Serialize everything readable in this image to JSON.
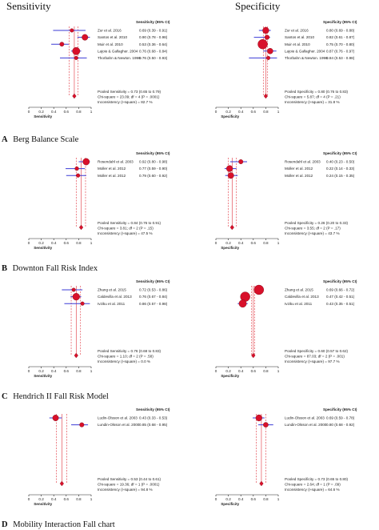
{
  "headers": {
    "left": "Sensitivity",
    "right": "Specificity"
  },
  "sections": [
    {
      "letter": "A",
      "title": "Berg Balance Scale"
    },
    {
      "letter": "B",
      "title": "Downton Fall Risk Index"
    },
    {
      "letter": "C",
      "title": "Hendrich II Fall Risk Model"
    },
    {
      "letter": "D",
      "title": "Mobility Interaction Fall chart"
    }
  ],
  "chart_data": [
    {
      "type": "forest",
      "panel": "A",
      "measure": "sensitivity",
      "col_header": "Sensitivity (95% CI)",
      "xlabel": "Sensitivity",
      "xlim": [
        0,
        1
      ],
      "ticks": [
        "0",
        "0.2",
        "0.4",
        "0.6",
        "0.8",
        "1"
      ],
      "studies": [
        {
          "name": "Zur et al. 2016",
          "value": 0.69,
          "lo": 0.39,
          "hi": 0.91,
          "ci_text": "0.69 (0.39 - 0.91)"
        },
        {
          "name": "Santos et al. 2010",
          "value": 0.9,
          "lo": 0.78,
          "hi": 0.98,
          "ci_text": "0.90 (0.78 - 0.98)"
        },
        {
          "name": "Muir et al. 2010",
          "value": 0.53,
          "lo": 0.36,
          "hi": 0.64,
          "ci_text": "0.53 (0.36 - 0.64)"
        },
        {
          "name": "Lajoie & Gallagher. 2004",
          "value": 0.76,
          "lo": 0.68,
          "hi": 0.84,
          "ci_text": "0.76 (0.68 - 0.84)"
        },
        {
          "name": "Thorbahn & Newton. 1996",
          "value": 0.76,
          "lo": 0.5,
          "hi": 0.93,
          "ci_text": "0.76 (0.50 - 0.93)"
        }
      ],
      "pooled": {
        "value": 0.73,
        "lo": 0.65,
        "hi": 0.79
      },
      "summary": [
        "Pooled Sensitivity = 0.73 (0.65 to 0.79)",
        "Chi-square = 23.09; df = 4 (P = .0001)",
        "Inconsistency (I-square) = 82.7 %"
      ]
    },
    {
      "type": "forest",
      "panel": "A",
      "measure": "specificity",
      "col_header": "Specificity (95% CI)",
      "xlabel": "Specificity",
      "xlim": [
        0,
        1
      ],
      "ticks": [
        "0",
        "0.2",
        "0.4",
        "0.6",
        "0.8",
        "1"
      ],
      "studies": [
        {
          "name": "Zur et al. 2016",
          "value": 0.8,
          "lo": 0.69,
          "hi": 0.88,
          "ci_text": "0.80 (0.69 - 0.88)"
        },
        {
          "name": "Santos et al. 2010",
          "value": 0.82,
          "lo": 0.61,
          "hi": 0.87,
          "ci_text": "0.82 (0.61 - 0.87)"
        },
        {
          "name": "Muir et al. 2010",
          "value": 0.75,
          "lo": 0.7,
          "hi": 0.8,
          "ci_text": "0.75 (0.70 - 0.80)"
        },
        {
          "name": "Lajoie & Gallagher. 2004",
          "value": 0.87,
          "lo": 0.76,
          "hi": 0.97,
          "ci_text": "0.87 (0.76 - 0.97)"
        },
        {
          "name": "Thorbahn & Newton. 1996",
          "value": 0.84,
          "lo": 0.53,
          "hi": 0.98,
          "ci_text": "0.84 (0.53 - 0.98)"
        }
      ],
      "pooled": {
        "value": 0.8,
        "lo": 0.76,
        "hi": 0.83
      },
      "summary": [
        "Pooled Specificity = 0.80 (0.76 to 0.83)",
        "Chi-square = 5.87; df = 4 (P = .21)",
        "Inconsistency (I-square) = 31.8 %"
      ]
    },
    {
      "type": "forest",
      "panel": "B",
      "measure": "sensitivity",
      "col_header": "Sensitivity (95% CI)",
      "xlabel": "Sensitivity",
      "xlim": [
        0,
        1
      ],
      "ticks": [
        "0",
        "0.2",
        "0.4",
        "0.6",
        "0.8",
        "1"
      ],
      "studies": [
        {
          "name": "Rosendahl et al. 2003",
          "value": 0.92,
          "lo": 0.8,
          "hi": 0.98,
          "ci_text": "0.92 (0.80 - 0.98)"
        },
        {
          "name": "Moller et al. 2012",
          "value": 0.77,
          "lo": 0.59,
          "hi": 0.9,
          "ci_text": "0.77 (0.59 - 0.90)"
        },
        {
          "name": "Moller et al. 2012",
          "value": 0.79,
          "lo": 0.6,
          "hi": 0.92,
          "ci_text": "0.79 (0.60 - 0.92)"
        }
      ],
      "pooled": {
        "value": 0.84,
        "lo": 0.76,
        "hi": 0.91
      },
      "summary": [
        "Pooled Sensitivity = 0.84 (0.76 to 0.91)",
        "Chi-square = 3.81; df = 2 (P = .15)",
        "Inconsistency (I-square) = 47.5 %"
      ]
    },
    {
      "type": "forest",
      "panel": "B",
      "measure": "specificity",
      "col_header": "Specificity (95% CI)",
      "xlabel": "Specificity",
      "xlim": [
        0,
        1
      ],
      "ticks": [
        "0",
        "0.2",
        "0.4",
        "0.6",
        "0.8",
        "1"
      ],
      "studies": [
        {
          "name": "Rosendahl et al. 2003",
          "value": 0.4,
          "lo": 0.23,
          "hi": 0.5,
          "ci_text": "0.40 (0.23 - 0.50)"
        },
        {
          "name": "Moller et al. 2012",
          "value": 0.22,
          "lo": 0.14,
          "hi": 0.33,
          "ci_text": "0.22 (0.14 - 0.33)"
        },
        {
          "name": "Moller et al. 2012",
          "value": 0.24,
          "lo": 0.15,
          "hi": 0.35,
          "ci_text": "0.24 (0.15 - 0.35)"
        }
      ],
      "pooled": {
        "value": 0.26,
        "lo": 0.2,
        "hi": 0.33
      },
      "summary": [
        "Pooled Specificity = 0.26 (0.20 to 0.33)",
        "Chi-square = 3.55; df = 2 (P = .17)",
        "Inconsistency (I-square) = 43.7 %"
      ]
    },
    {
      "type": "forest",
      "panel": "C",
      "measure": "sensitivity",
      "col_header": "Sensitivity (95% CI)",
      "xlabel": "Sensitivity",
      "xlim": [
        0,
        1
      ],
      "ticks": [
        "0",
        "0.2",
        "0.4",
        "0.6",
        "0.8",
        "1"
      ],
      "studies": [
        {
          "name": "Zhang et al. 2015",
          "value": 0.72,
          "lo": 0.53,
          "hi": 0.86,
          "ci_text": "0.72 (0.53 - 0.86)"
        },
        {
          "name": "Caldevilla et al. 2013",
          "value": 0.76,
          "lo": 0.67,
          "hi": 0.84,
          "ci_text": "0.76 (0.67 - 0.84)"
        },
        {
          "name": "Ivziku et al. 2011",
          "value": 0.86,
          "lo": 0.57,
          "hi": 0.98,
          "ci_text": "0.86 (0.57 - 0.98)"
        }
      ],
      "pooled": {
        "value": 0.76,
        "lo": 0.68,
        "hi": 0.83
      },
      "summary": [
        "Pooled Sensitivity = 0.76 (0.68 to 0.83)",
        "Chi-square = 1.10; df = 2 (P = .58)",
        "Inconsistency (I-square) = 0.0 %"
      ]
    },
    {
      "type": "forest",
      "panel": "C",
      "measure": "specificity",
      "col_header": "Specificity (95% CI)",
      "xlabel": "Specificity",
      "xlim": [
        0,
        1
      ],
      "ticks": [
        "0",
        "0.2",
        "0.4",
        "0.6",
        "0.8",
        "1"
      ],
      "studies": [
        {
          "name": "Zhang et al. 2015",
          "value": 0.69,
          "lo": 0.66,
          "hi": 0.72,
          "ci_text": "0.69 (0.66 - 0.72)"
        },
        {
          "name": "Caldevilla et al. 2013",
          "value": 0.47,
          "lo": 0.42,
          "hi": 0.51,
          "ci_text": "0.47 (0.42 - 0.51)"
        },
        {
          "name": "Ivziku et al. 2011",
          "value": 0.43,
          "lo": 0.35,
          "hi": 0.51,
          "ci_text": "0.43 (0.35 - 0.51)"
        }
      ],
      "pooled": {
        "value": 0.6,
        "lo": 0.57,
        "hi": 0.62
      },
      "summary": [
        "Pooled Specificity = 0.60 (0.57 to 0.62)",
        "Chi-square = 87.03; df = 2 (P = .001)",
        "Inconsistency (I-square) = 97.7 %"
      ]
    },
    {
      "type": "forest",
      "panel": "D",
      "measure": "sensitivity",
      "col_header": "Sensitivity (95% CI)",
      "xlabel": "Sensitivity",
      "xlim": [
        0,
        1
      ],
      "ticks": [
        "0",
        "0.2",
        "0.4",
        "0.6",
        "0.8",
        "1"
      ],
      "studies": [
        {
          "name": "Ludin-Olsson et al. 2003",
          "value": 0.43,
          "lo": 0.33,
          "hi": 0.53,
          "ci_text": "0.43 (0.33 - 0.53)"
        },
        {
          "name": "Lundin-Olsson et al. 2000",
          "value": 0.85,
          "lo": 0.68,
          "hi": 0.95,
          "ci_text": "0.85 (0.68 - 0.95)"
        }
      ],
      "pooled": {
        "value": 0.53,
        "lo": 0.44,
        "hi": 0.61
      },
      "summary": [
        "Pooled Sensitivity = 0.53 (0.44 to 0.61)",
        "Chi-square = 19.36; df = 1 (P = .0001)",
        "Inconsistency (I-square) = 94.8 %"
      ]
    },
    {
      "type": "forest",
      "panel": "D",
      "measure": "specificity",
      "col_header": "Specificity (95% CI)",
      "xlabel": "Specificity",
      "xlim": [
        0,
        1
      ],
      "ticks": [
        "0",
        "0.2",
        "0.4",
        "0.6",
        "0.8",
        "1"
      ],
      "studies": [
        {
          "name": "Ludin-Olsson et al. 2003",
          "value": 0.69,
          "lo": 0.59,
          "hi": 0.78,
          "ci_text": "0.69 (0.59 - 0.78)"
        },
        {
          "name": "Lundin-Olsson et al. 2000",
          "value": 0.8,
          "lo": 0.68,
          "hi": 0.92,
          "ci_text": "0.80 (0.68 - 0.92)"
        }
      ],
      "pooled": {
        "value": 0.73,
        "lo": 0.65,
        "hi": 0.8
      },
      "summary": [
        "Pooled Specificity = 0.73 (0.65 to 0.80)",
        "Chi-square = 2.64; df = 1 (P = .09)",
        "Inconsistency (I-square) = 64.6 %"
      ]
    }
  ]
}
